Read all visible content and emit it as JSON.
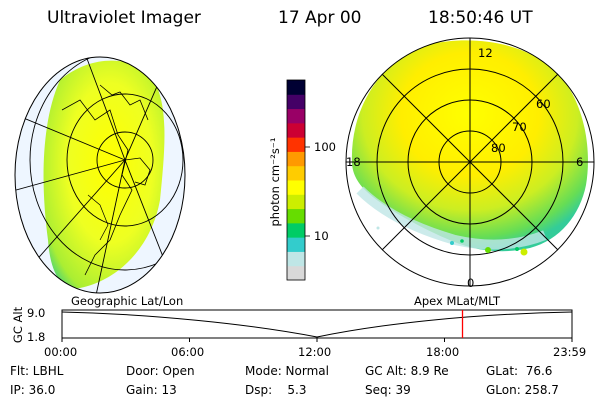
{
  "header": {
    "instrument": "Ultraviolet Imager",
    "date": "17 Apr 00",
    "time": "18:50:46 UT"
  },
  "colorbar": {
    "unit_label": "photon cm⁻²s⁻¹",
    "ticks": [
      "100",
      "10"
    ],
    "colors": [
      "#d9d9d9",
      "#bfe6e6",
      "#33cccc",
      "#00cc66",
      "#66dd00",
      "#ccee00",
      "#ffff00",
      "#ffcc00",
      "#ff9900",
      "#ff3300",
      "#cc0033",
      "#990066",
      "#440066",
      "#000033"
    ]
  },
  "left_map": {
    "caption": "Geographic Lat/Lon"
  },
  "right_map": {
    "caption": "Apex MLat/MLT",
    "lat_labels": [
      "60",
      "70",
      "80"
    ],
    "mlt_labels": [
      "12",
      "18",
      "6",
      "0"
    ]
  },
  "timeline": {
    "y_axis_label": "GC Alt",
    "y_ticks": [
      "9.0",
      "1.8"
    ],
    "x_ticks": [
      "00:00",
      "06:00",
      "12:00",
      "18:00",
      "23:59"
    ],
    "current_time_fraction": 0.7853
  },
  "info": {
    "flt": "Flt: LBHL",
    "ip": "IP: 36.0",
    "door": "Door: Open",
    "gain": "Gain: 13",
    "mode": "Mode: Normal",
    "dsp": "Dsp:    5.3",
    "gcalt": "GC Alt: 8.9 Re",
    "seq": "Seq: 39",
    "glat": "GLat:  76.6",
    "glon": "GLon: 258.7"
  }
}
